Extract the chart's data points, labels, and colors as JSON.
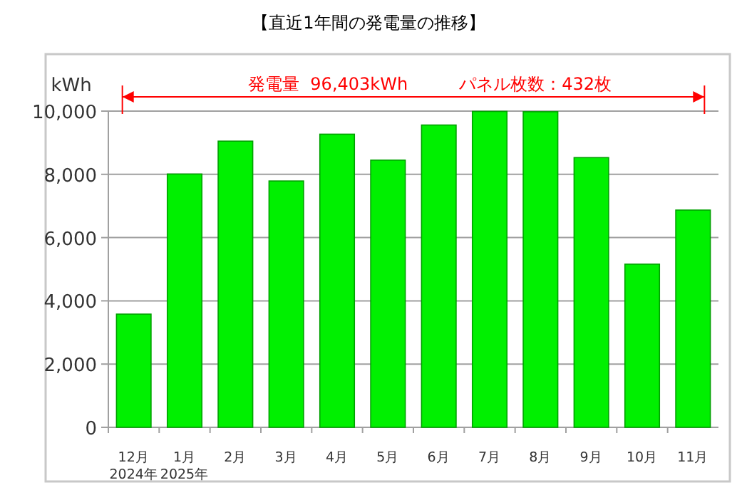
{
  "chart_data": {
    "type": "bar",
    "title": "【直近1年間の発電量の推移】",
    "ylabel": "kWh",
    "categories": [
      "12月\n2024年",
      "1月\n2025年",
      "2月",
      "3月",
      "4月",
      "5月",
      "6月",
      "7月",
      "8月",
      "9月",
      "10月",
      "11月"
    ],
    "values": [
      3580,
      8010,
      9050,
      7790,
      9270,
      8450,
      9560,
      9990,
      9980,
      8530,
      5160,
      6870
    ],
    "color": "#00f000",
    "ylim": [
      0,
      10000
    ],
    "yticks": [
      {
        "value": 0,
        "label": "0"
      },
      {
        "value": 2000,
        "label": "2,000"
      },
      {
        "value": 4000,
        "label": "4,000"
      },
      {
        "value": 6000,
        "label": "6,000"
      },
      {
        "value": 8000,
        "label": "8,000"
      },
      {
        "value": 10000,
        "label": "10,000"
      }
    ],
    "grid": "y",
    "annotations": [
      "発電量  96,403kWh",
      "パネル枚数：432枚"
    ]
  }
}
